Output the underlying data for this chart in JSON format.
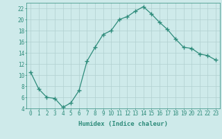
{
  "x": [
    0,
    1,
    2,
    3,
    4,
    5,
    6,
    7,
    8,
    9,
    10,
    11,
    12,
    13,
    14,
    15,
    16,
    17,
    18,
    19,
    20,
    21,
    22,
    23
  ],
  "y": [
    10.5,
    7.5,
    6.0,
    5.8,
    4.2,
    5.0,
    7.2,
    12.5,
    15.0,
    17.3,
    18.0,
    20.0,
    20.5,
    21.5,
    22.3,
    21.0,
    19.5,
    18.2,
    16.5,
    15.0,
    14.8,
    13.8,
    13.5,
    12.7
  ],
  "line_color": "#2d8b7a",
  "marker": "+",
  "marker_size": 4,
  "marker_linewidth": 1.0,
  "bg_color": "#ceeaea",
  "grid_color": "#b0d0d0",
  "xlabel": "Humidex (Indice chaleur)",
  "ylabel": "",
  "xlim": [
    -0.5,
    23.5
  ],
  "ylim": [
    4,
    23
  ],
  "yticks": [
    4,
    6,
    8,
    10,
    12,
    14,
    16,
    18,
    20,
    22
  ],
  "xticks": [
    0,
    1,
    2,
    3,
    4,
    5,
    6,
    7,
    8,
    9,
    10,
    11,
    12,
    13,
    14,
    15,
    16,
    17,
    18,
    19,
    20,
    21,
    22,
    23
  ],
  "tick_color": "#2d8b7a",
  "label_fontsize": 6.5,
  "tick_fontsize": 5.5,
  "linewidth": 0.9
}
